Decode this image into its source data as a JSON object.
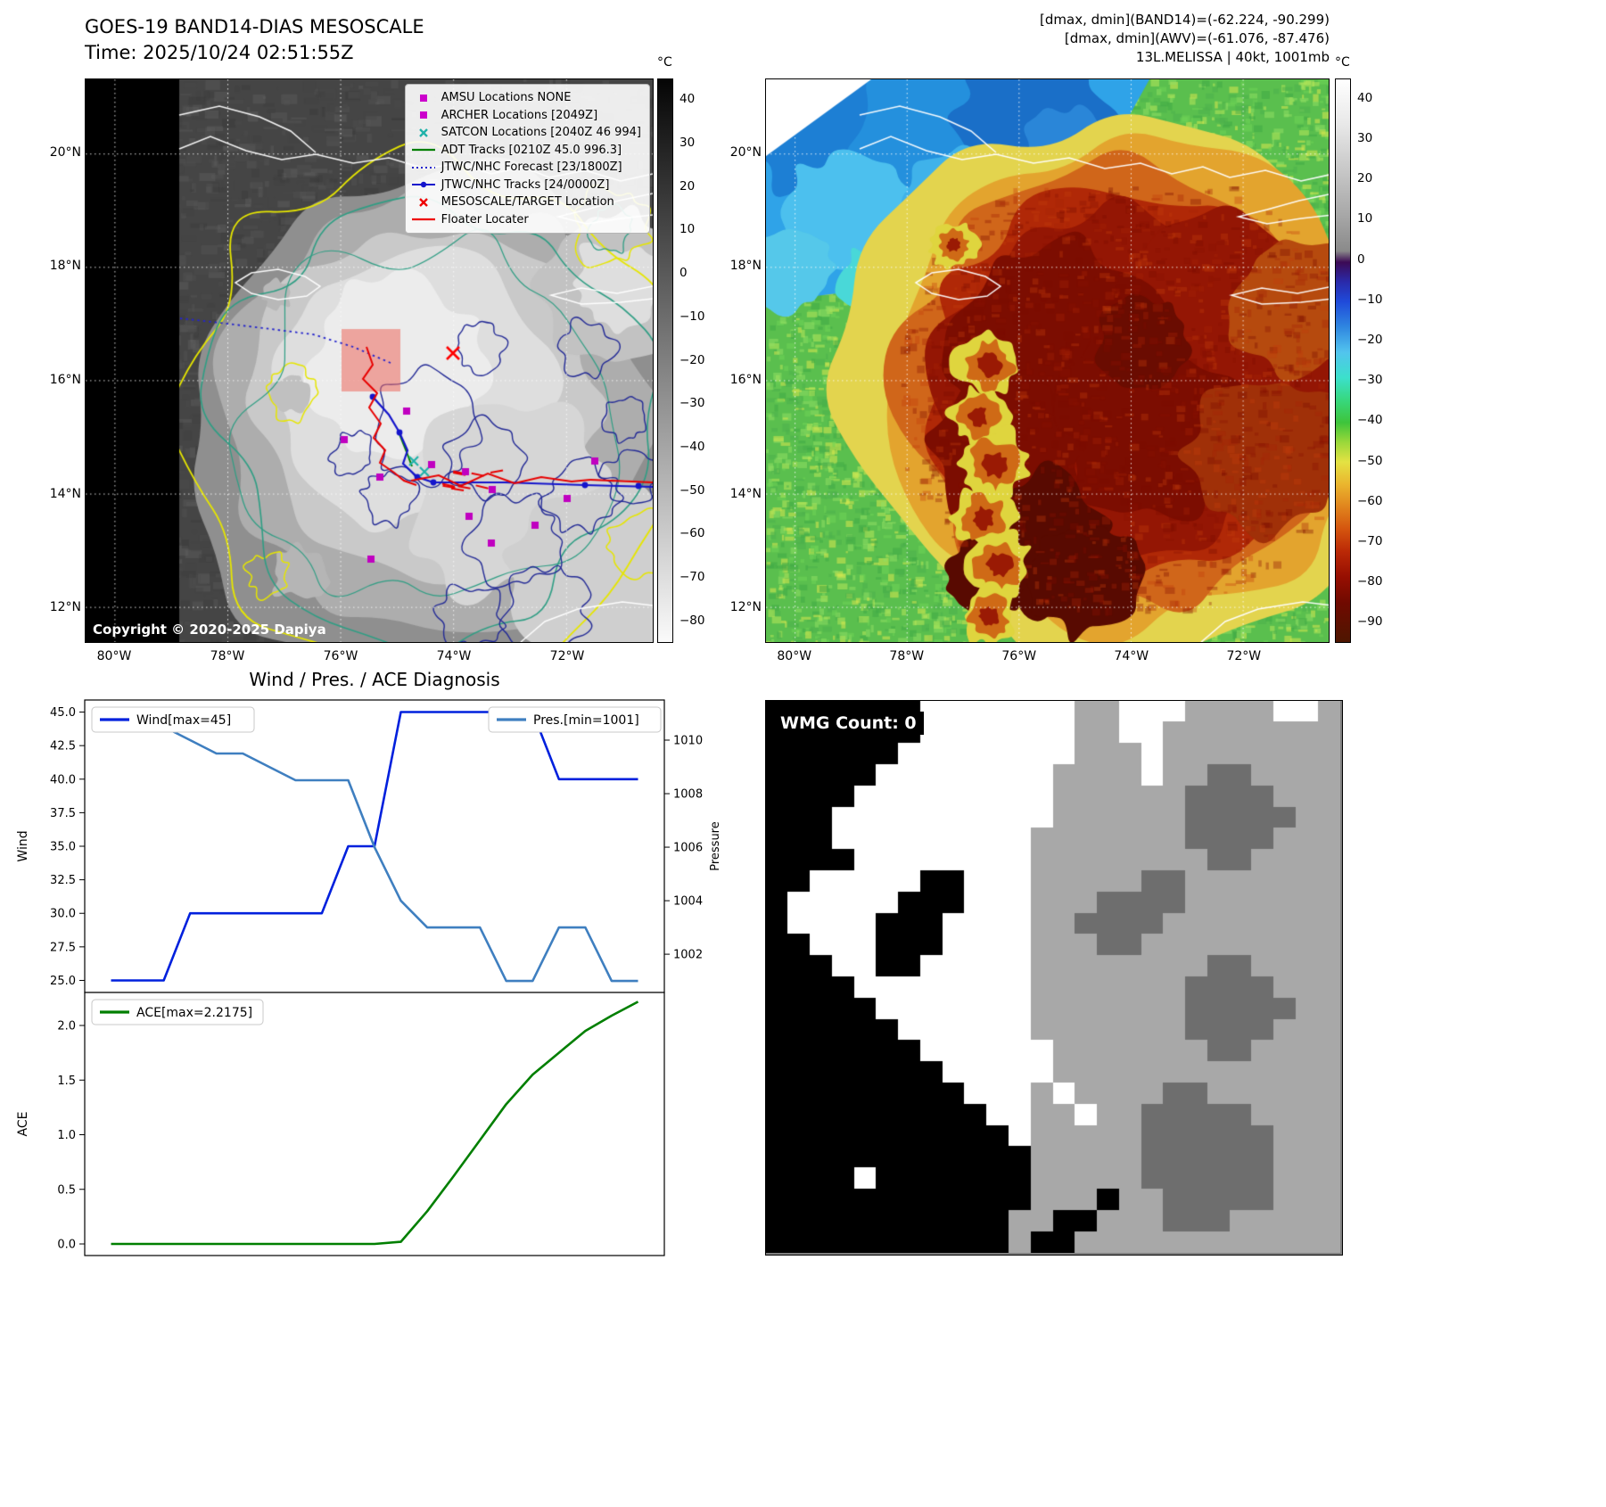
{
  "header": {
    "title_line1": "GOES-19 BAND14-DIAS MESOSCALE",
    "title_line2": "Time: 2025/10/24 02:51:55Z",
    "right_line1": "[dmax, dmin](BAND14)=(-62.224, -90.299)",
    "right_line2": "[dmax, dmin](AWV)=(-61.076, -87.476)",
    "right_line3": "13L.MELISSA | 40kt, 1001mb"
  },
  "geo": {
    "lat_ticks": [
      "20°N",
      "18°N",
      "16°N",
      "14°N",
      "12°N"
    ],
    "lon_ticks": [
      "80°W",
      "78°W",
      "76°W",
      "74°W",
      "72°W"
    ]
  },
  "left_map": {
    "copyright": "Copyright © 2020-2025 Dapiya",
    "colorbar": {
      "unit": "°C",
      "tmax": 45,
      "tmin": -85,
      "ticks": [
        40,
        30,
        20,
        10,
        0,
        -10,
        -20,
        -30,
        -40,
        -50,
        -60,
        -70,
        -80
      ]
    },
    "legend_items": [
      {
        "label": "AMSU Locations NONE",
        "marker": "square",
        "color": "#cc00cc"
      },
      {
        "label": "ARCHER Locations [2049Z]",
        "marker": "square",
        "color": "#cc00cc"
      },
      {
        "label": "SATCON Locations [2040Z 46 994]",
        "marker": "x",
        "color": "#20b2aa"
      },
      {
        "label": "ADT Tracks [0210Z 45.0 996.3]",
        "marker": "line",
        "color": "#007f00"
      },
      {
        "label": "JTWC/NHC Forecast [23/1800Z]",
        "marker": "dotted-line",
        "color": "#2424cc"
      },
      {
        "label": "JTWC/NHC Tracks [24/0000Z]",
        "marker": "line-dot",
        "color": "#1414cc"
      },
      {
        "label": "MESOSCALE/TARGET Location",
        "marker": "x",
        "color": "#ee0000"
      },
      {
        "label": "Floater Locater",
        "marker": "line",
        "color": "#ee0000"
      }
    ]
  },
  "right_map": {
    "colorbar": {
      "unit": "°C",
      "tmax": 45,
      "tmin": -95,
      "ticks": [
        40,
        30,
        20,
        10,
        0,
        -10,
        -20,
        -30,
        -40,
        -50,
        -60,
        -70,
        -80,
        -90
      ]
    }
  },
  "chart_data": [
    {
      "type": "line",
      "title": "Wind / Pres. / ACE Diagnosis",
      "x": [
        0,
        1,
        2,
        3,
        4,
        5,
        6,
        7,
        8,
        9,
        10,
        11,
        12,
        13,
        14,
        15,
        16,
        17,
        18,
        19,
        20
      ],
      "xlim": [
        -1,
        21
      ],
      "axes": {
        "left": {
          "label": "Wind",
          "ticks": [
            25.0,
            27.5,
            30.0,
            32.5,
            35.0,
            37.5,
            40.0,
            42.5,
            45.0
          ],
          "lim": [
            24.1,
            45.9
          ]
        },
        "right": {
          "label": "Pressure",
          "ticks": [
            1002,
            1004,
            1006,
            1008,
            1010
          ],
          "lim": [
            1000.57,
            1011.5
          ]
        }
      },
      "series": [
        {
          "key": "wind",
          "name": "Wind[max=45]",
          "axis": "left",
          "color": "#0020dd",
          "values": [
            25,
            25,
            25,
            30,
            30,
            30,
            30,
            30,
            30,
            35,
            35,
            45,
            45,
            45,
            45,
            45,
            45,
            40,
            40,
            40,
            40
          ]
        },
        {
          "key": "pressure",
          "name": "Pres.[min=1001]",
          "axis": "right",
          "color": "#3f7fc0",
          "values": [
            1010.5,
            1010.5,
            1010.5,
            1010,
            1009.5,
            1009.5,
            1009,
            1008.5,
            1008.5,
            1008.5,
            1006,
            1004,
            1003,
            1003,
            1003,
            1001,
            1001,
            1003,
            1003,
            1001,
            1001
          ]
        }
      ],
      "legend_loc": [
        "upper-left",
        "upper-right"
      ]
    },
    {
      "type": "line",
      "x": [
        0,
        1,
        2,
        3,
        4,
        5,
        6,
        7,
        8,
        9,
        10,
        11,
        12,
        13,
        14,
        15,
        16,
        17,
        18,
        19,
        20
      ],
      "xlim": [
        -1,
        21
      ],
      "axes": {
        "left": {
          "label": "ACE",
          "ticks": [
            0.0,
            0.5,
            1.0,
            1.5,
            2.0
          ],
          "lim": [
            -0.106,
            2.302
          ]
        }
      },
      "series": [
        {
          "key": "ace",
          "name": "ACE[max=2.2175]",
          "axis": "left",
          "color": "#007f00",
          "values": [
            0,
            0,
            0,
            0,
            0,
            0,
            0,
            0,
            0,
            0,
            0,
            0.02,
            0.3,
            0.62,
            0.95,
            1.28,
            1.55,
            1.75,
            1.95,
            2.09,
            2.2175
          ]
        }
      ],
      "legend_loc": [
        "upper-left"
      ]
    }
  ],
  "wmg": {
    "label": "WMG Count: 0",
    "palette": {
      "K": "#000000",
      "W": "#ffffff",
      "G": "#a8a8a8",
      "D": "#6e6e6e"
    },
    "grid": [
      "KKKKKKKWWWWWWWGGWWWGGGGWWG",
      "KKKKKKKWWWWWWWGGWWGGGGGGGG",
      "KKKKKKWWWWWWWWGGGWGGGGGGGG",
      "KKKKKWWWWWWWWGGGGWGGDDGGGG",
      "KKKKWWWWWWWWWGGGGGGDDDDGGG",
      "KKKWWWWWWWWWWGGGGGGDDDDDGG",
      "KKKWWWWWWWWWGGGGGGGDDDDGGG",
      "KKKKWWWWWWWWGGGGGGGGDDGGGG",
      "KKWWWWWKKWWWGGGGGDDGGGGGGG",
      "KWWWWWKKKWWWGGGDDDDGGGGGGG",
      "KWWWWKKKWWWWGGDDDDGGGGGGGG",
      "KKWWWKKKWWWWGGGDDGGGGGGGGG",
      "KKKWWKKWWWWWGGGGGGGGDDGGGG",
      "KKKKWWWWWWWWGGGGGGGDDDDGGG",
      "KKKKKWWWWWWWGGGGGGGDDDDDGG",
      "KKKKKKWWWWWWGGGGGGGDDDDGGG",
      "KKKKKKKWWWWWWGGGGGGGDDGGGG",
      "KKKKKKKKWWWWWGGGGGGGGGGGGG",
      "KKKKKKKKKWWWGWGGGGDDGGGGGG",
      "KKKKKKKKKKWWGGWGGDDDDDGGGG",
      "KKKKKKKKKKKWGGGGGDDDDDDGGG",
      "KKKKKKKKKKKKGGGGGDDDDDDGGG",
      "KKKKWKKKKKKKGGGGGDDDDDDGGG",
      "KKKKKKKKKKKKGGGKGGDDDDDGGG",
      "KKKKKKKKKKKGGKKGGGDDDGGGGG",
      "KKKKKKKKKKKGKKGGGGGGGGGGGG"
    ]
  }
}
